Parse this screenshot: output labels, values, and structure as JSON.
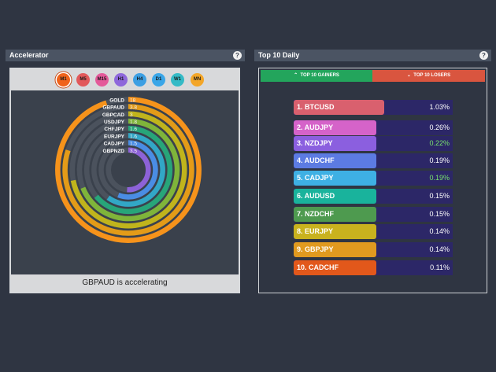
{
  "accelerator": {
    "title": "Accelerator",
    "timeframes": [
      {
        "label": "M1",
        "color": "#f0631b",
        "active": true
      },
      {
        "label": "M5",
        "color": "#e2585a",
        "active": false
      },
      {
        "label": "M15",
        "color": "#e45a9a",
        "active": false
      },
      {
        "label": "H1",
        "color": "#8e68db",
        "active": false
      },
      {
        "label": "H4",
        "color": "#3c9fe3",
        "active": false
      },
      {
        "label": "D1",
        "color": "#3aa6e8",
        "active": false
      },
      {
        "label": "W1",
        "color": "#34bac6",
        "active": false
      },
      {
        "label": "MN",
        "color": "#f3a629",
        "active": false
      }
    ],
    "pairs": [
      {
        "name": "GOLD",
        "value": "18",
        "color": "#f6931b",
        "fraction": 0.95
      },
      {
        "name": "GBPAUD",
        "value": "3.8",
        "color": "#e39b18",
        "fraction": 0.8
      },
      {
        "name": "GBPCAD",
        "value": "3",
        "color": "#c0b41c",
        "fraction": 0.72
      },
      {
        "name": "USDJPY",
        "value": "1.8",
        "color": "#7fb43a",
        "fraction": 0.69
      },
      {
        "name": "CHFJPY",
        "value": "1.6",
        "color": "#27a579",
        "fraction": 0.64
      },
      {
        "name": "EURJPY",
        "value": "1.6",
        "color": "#32a7c6",
        "fraction": 0.6
      },
      {
        "name": "CADJPY",
        "value": "1.5",
        "color": "#4a8de4",
        "fraction": 0.56
      },
      {
        "name": "GBPNZD",
        "value": "3.5",
        "color": "#8d62d8",
        "fraction": 0.51
      }
    ],
    "footer": "GBPAUD is accelerating"
  },
  "top10": {
    "title": "Top 10 Daily",
    "tab_gainers": "TOP 10 GAINERS",
    "tab_losers": "TOP 10 LOSERS",
    "rows": [
      {
        "label": "1. BTCUSD",
        "value": "1.03%",
        "color": "#d9606e",
        "fill": 0.57,
        "value_color": "#ffffff"
      },
      {
        "label": "2. AUDJPY",
        "value": "0.26%",
        "color": "#d563c9",
        "fill": 0.52,
        "value_color": "#ffffff"
      },
      {
        "label": "3. NZDJPY",
        "value": "0.22%",
        "color": "#8b5fdf",
        "fill": 0.52,
        "value_color": "#79e26d"
      },
      {
        "label": "4. AUDCHF",
        "value": "0.19%",
        "color": "#5c7be2",
        "fill": 0.52,
        "value_color": "#ffffff"
      },
      {
        "label": "5. CADJPY",
        "value": "0.19%",
        "color": "#3eb0e4",
        "fill": 0.52,
        "value_color": "#79e26d"
      },
      {
        "label": "6. AUDUSD",
        "value": "0.15%",
        "color": "#19b39c",
        "fill": 0.52,
        "value_color": "#ffffff"
      },
      {
        "label": "7. NZDCHF",
        "value": "0.15%",
        "color": "#4e9a4f",
        "fill": 0.52,
        "value_color": "#ffffff"
      },
      {
        "label": "8. EURJPY",
        "value": "0.14%",
        "color": "#c9b21e",
        "fill": 0.52,
        "value_color": "#ffffff"
      },
      {
        "label": "9. GBPJPY",
        "value": "0.14%",
        "color": "#e09a1f",
        "fill": 0.52,
        "value_color": "#ffffff"
      },
      {
        "label": "10. CADCHF",
        "value": "0.11%",
        "color": "#e2581b",
        "fill": 0.52,
        "value_color": "#ffffff"
      }
    ]
  }
}
